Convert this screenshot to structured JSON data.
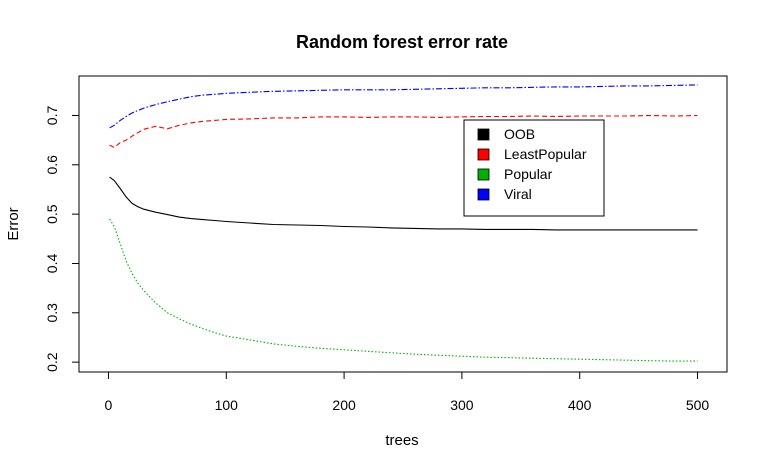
{
  "chart_data": {
    "type": "line",
    "title": "Random forest error rate",
    "xlabel": "trees",
    "ylabel": "Error",
    "xlim": [
      -25,
      525
    ],
    "ylim": [
      0.18,
      0.78
    ],
    "xticks": [
      0,
      100,
      200,
      300,
      400,
      500
    ],
    "yticks": [
      0.2,
      0.3,
      0.4,
      0.5,
      0.6,
      0.7
    ],
    "xtick_labels": [
      "0",
      "100",
      "200",
      "300",
      "400",
      "500"
    ],
    "ytick_labels": [
      "0.2",
      "0.3",
      "0.4",
      "0.5",
      "0.6",
      "0.7"
    ],
    "grid": false,
    "legend_position": "top-right",
    "x": [
      1,
      5,
      10,
      15,
      20,
      25,
      30,
      40,
      50,
      60,
      70,
      80,
      90,
      100,
      120,
      140,
      160,
      180,
      200,
      220,
      240,
      260,
      280,
      300,
      320,
      340,
      360,
      380,
      400,
      420,
      440,
      460,
      480,
      500
    ],
    "series": [
      {
        "name": "OOB",
        "color": "#000000",
        "dash": "solid",
        "values": [
          0.575,
          0.568,
          0.552,
          0.535,
          0.522,
          0.515,
          0.51,
          0.504,
          0.499,
          0.494,
          0.491,
          0.489,
          0.487,
          0.485,
          0.482,
          0.479,
          0.478,
          0.477,
          0.475,
          0.474,
          0.472,
          0.471,
          0.47,
          0.47,
          0.469,
          0.469,
          0.469,
          0.468,
          0.468,
          0.468,
          0.468,
          0.468,
          0.468,
          0.468
        ]
      },
      {
        "name": "LeastPopular",
        "color": "#ff0000",
        "dash": "dashed",
        "values": [
          0.64,
          0.635,
          0.645,
          0.65,
          0.658,
          0.665,
          0.672,
          0.678,
          0.673,
          0.68,
          0.685,
          0.688,
          0.69,
          0.692,
          0.693,
          0.695,
          0.695,
          0.697,
          0.697,
          0.696,
          0.697,
          0.697,
          0.696,
          0.697,
          0.698,
          0.698,
          0.699,
          0.698,
          0.699,
          0.699,
          0.699,
          0.7,
          0.699,
          0.7
        ]
      },
      {
        "name": "Popular",
        "color": "#00b000",
        "dash": "dotted",
        "values": [
          0.49,
          0.475,
          0.44,
          0.405,
          0.38,
          0.36,
          0.345,
          0.32,
          0.3,
          0.288,
          0.277,
          0.268,
          0.26,
          0.253,
          0.245,
          0.237,
          0.232,
          0.228,
          0.225,
          0.222,
          0.219,
          0.216,
          0.214,
          0.212,
          0.21,
          0.209,
          0.208,
          0.207,
          0.206,
          0.205,
          0.204,
          0.203,
          0.202,
          0.202
        ]
      },
      {
        "name": "Viral",
        "color": "#0000ff",
        "dash": "dashdot",
        "values": [
          0.675,
          0.68,
          0.69,
          0.698,
          0.705,
          0.71,
          0.715,
          0.722,
          0.728,
          0.733,
          0.738,
          0.741,
          0.743,
          0.745,
          0.747,
          0.749,
          0.75,
          0.751,
          0.752,
          0.752,
          0.752,
          0.753,
          0.754,
          0.755,
          0.756,
          0.756,
          0.757,
          0.758,
          0.758,
          0.759,
          0.76,
          0.76,
          0.761,
          0.762
        ]
      }
    ]
  }
}
